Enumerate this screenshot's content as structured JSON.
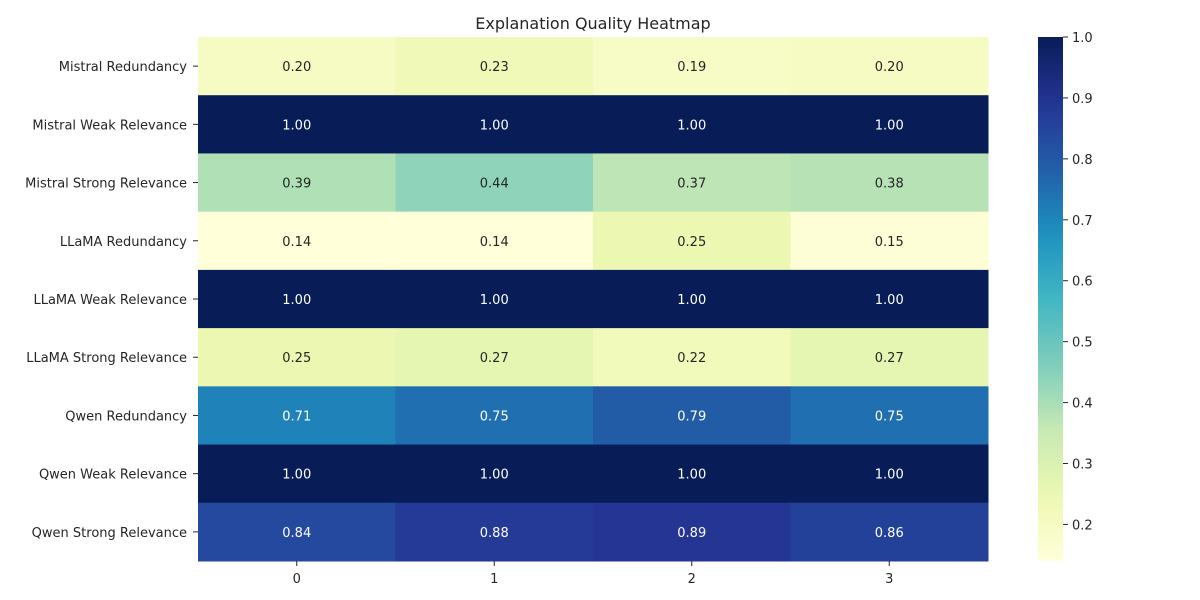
{
  "chart_data": {
    "type": "heatmap",
    "title": "Explanation Quality Heatmap",
    "xlabel": "",
    "ylabel": "",
    "x_categories": [
      "0",
      "1",
      "2",
      "3"
    ],
    "y_categories": [
      "Mistral Redundancy",
      "Mistral Weak Relevance",
      "Mistral Strong Relevance",
      "LLaMA Redundancy",
      "LLaMA Weak Relevance",
      "LLaMA Strong Relevance",
      "Qwen Redundancy",
      "Qwen Weak Relevance",
      "Qwen Strong Relevance"
    ],
    "values": [
      [
        0.2,
        0.23,
        0.19,
        0.2
      ],
      [
        1.0,
        1.0,
        1.0,
        1.0
      ],
      [
        0.39,
        0.44,
        0.37,
        0.38
      ],
      [
        0.14,
        0.14,
        0.25,
        0.15
      ],
      [
        1.0,
        1.0,
        1.0,
        1.0
      ],
      [
        0.25,
        0.27,
        0.22,
        0.27
      ],
      [
        0.71,
        0.75,
        0.79,
        0.75
      ],
      [
        1.0,
        1.0,
        1.0,
        1.0
      ],
      [
        0.84,
        0.88,
        0.89,
        0.86
      ]
    ],
    "value_format": "2 decimals",
    "colormap": "YlGnBu",
    "colorbar": {
      "vmin": 0.14,
      "vmax": 1.0,
      "ticks": [
        "0.2",
        "0.3",
        "0.4",
        "0.5",
        "0.6",
        "0.7",
        "0.8",
        "0.9",
        "1.0"
      ],
      "placement": "right"
    },
    "grid": false
  }
}
